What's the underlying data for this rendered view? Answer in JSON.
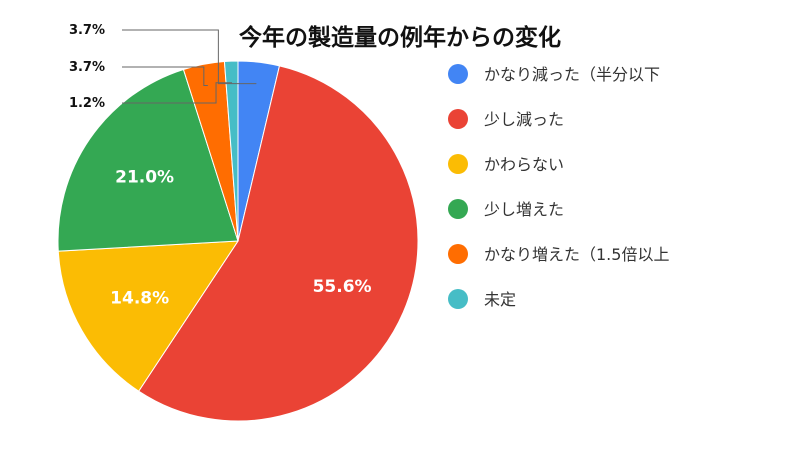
{
  "chart_data": {
    "type": "pie",
    "title": "今年の製造量の例年からの変化",
    "slices": [
      {
        "label": "かなり減った（半分以下",
        "value": 3.7,
        "display": "3.7%",
        "color": "#4285F4"
      },
      {
        "label": "少し減った",
        "value": 55.6,
        "display": "55.6%",
        "color": "#EA4335"
      },
      {
        "label": "かわらない",
        "value": 14.8,
        "display": "14.8%",
        "color": "#FBBC04"
      },
      {
        "label": "少し増えた",
        "value": 21.0,
        "display": "21.0%",
        "color": "#34A853"
      },
      {
        "label": "かなり増えた（1.5倍以上",
        "value": 3.7,
        "display": "3.7%",
        "color": "#FF6D01"
      },
      {
        "label": "未定",
        "value": 1.2,
        "display": "1.2%",
        "color": "#46BDC6"
      }
    ],
    "legend_position": "right"
  }
}
